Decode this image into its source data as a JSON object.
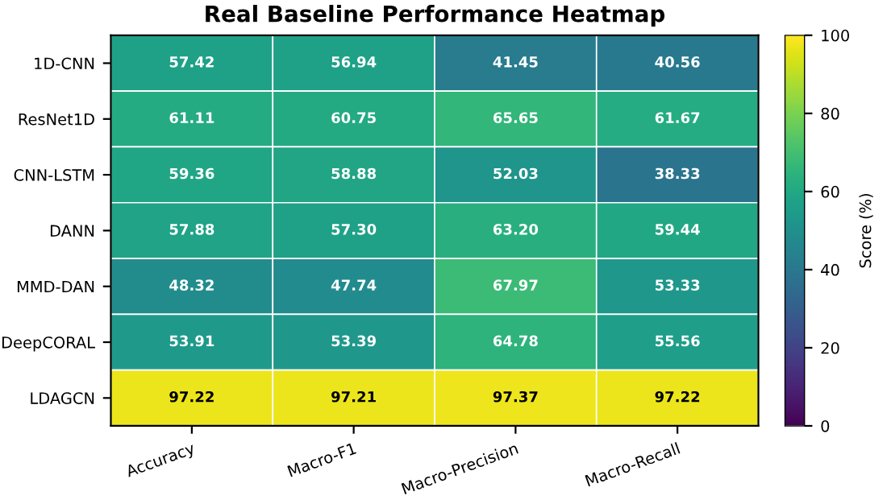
{
  "chart_data": {
    "type": "heatmap",
    "title": "Real Baseline Performance Heatmap",
    "clabel": "Score (%)",
    "categories": [
      "Accuracy",
      "Macro-F1",
      "Macro-Precision",
      "Macro-Recall"
    ],
    "y_categories": [
      "1D-CNN",
      "ResNet1D",
      "CNN-LSTM",
      "DANN",
      "MMD-DAN",
      "DeepCORAL",
      "LDAGCN"
    ],
    "cells": [
      [
        57.42,
        56.94,
        41.45,
        40.56
      ],
      [
        61.11,
        60.75,
        65.65,
        61.67
      ],
      [
        59.36,
        58.88,
        52.03,
        38.33
      ],
      [
        57.88,
        57.3,
        63.2,
        59.44
      ],
      [
        48.32,
        47.74,
        67.97,
        53.33
      ],
      [
        53.91,
        53.39,
        64.78,
        55.56
      ],
      [
        97.22,
        97.21,
        97.37,
        97.22
      ]
    ],
    "cell_labels": [
      [
        "57.42",
        "56.94",
        "41.45",
        "40.56"
      ],
      [
        "61.11",
        "60.75",
        "65.65",
        "61.67"
      ],
      [
        "59.36",
        "58.88",
        "52.03",
        "38.33"
      ],
      [
        "57.88",
        "57.30",
        "63.20",
        "59.44"
      ],
      [
        "48.32",
        "47.74",
        "67.97",
        "53.33"
      ],
      [
        "53.91",
        "53.39",
        "64.78",
        "55.56"
      ],
      [
        "97.22",
        "97.21",
        "97.37",
        "97.22"
      ]
    ],
    "clim": [
      0,
      100
    ],
    "cticks": [
      0,
      20,
      40,
      60,
      80,
      100
    ],
    "data_labels": true
  }
}
